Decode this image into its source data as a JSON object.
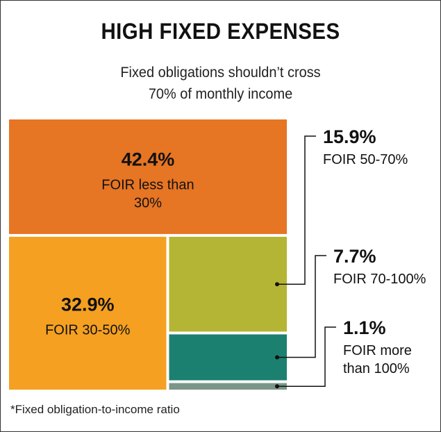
{
  "title": "HIGH FIXED EXPENSES",
  "subtitle": [
    "Fixed obligations shouldn’t cross",
    "70% of monthly income"
  ],
  "footnote": "*Fixed obligation-to-income ratio",
  "chart_data": {
    "type": "treemap",
    "title": "HIGH FIXED EXPENSES",
    "subtitle": "Fixed obligations shouldn’t cross 70% of monthly income",
    "unit": "%",
    "categories": [
      "FOIR less than 30%",
      "FOIR 30-50%",
      "FOIR 50-70%",
      "FOIR 70-100%",
      "FOIR more than 100%"
    ],
    "values": [
      42.4,
      32.9,
      15.9,
      7.7,
      1.1
    ],
    "series": [
      {
        "id": "lt30",
        "value": 42.4,
        "value_label": "42.4%",
        "label_lines": [
          "FOIR less than",
          "30%"
        ],
        "color": "#E67524",
        "label_placement": "inside"
      },
      {
        "id": "30to50",
        "value": 32.9,
        "value_label": "32.9%",
        "label_lines": [
          "FOIR 30-50%"
        ],
        "color": "#F5A021",
        "label_placement": "inside"
      },
      {
        "id": "50to70",
        "value": 15.9,
        "value_label": "15.9%",
        "label_lines": [
          "FOIR 50-70%"
        ],
        "color": "#B5B535",
        "label_placement": "callout"
      },
      {
        "id": "70to100",
        "value": 7.7,
        "value_label": "7.7%",
        "label_lines": [
          "FOIR 70-100%"
        ],
        "color": "#1C8070",
        "label_placement": "callout"
      },
      {
        "id": "gt100",
        "value": 1.1,
        "value_label": "1.1%",
        "label_lines": [
          "FOIR more",
          "than 100%"
        ],
        "color": "#7A9688",
        "label_placement": "callout"
      }
    ]
  }
}
